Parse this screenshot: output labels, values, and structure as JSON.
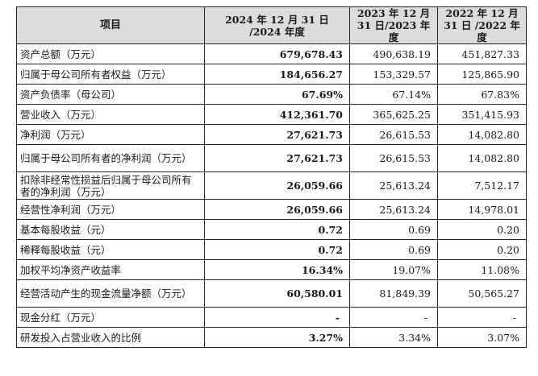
{
  "header": {
    "item": "项目",
    "y2024": "2024 年 12 月 31 日 /2024 年度",
    "y2023": "2023 年 12 月 31 日/2023 年度",
    "y2022": "2022 年 12 月 31 日 /2022 年度"
  },
  "rows": [
    {
      "label": "资产总额（万元）",
      "v2024": "679,678.43",
      "v2023": "490,638.19",
      "v2022": "451,827.33"
    },
    {
      "label": "归属于母公司所有者权益（万元）",
      "v2024": "184,656.27",
      "v2023": "153,329.57",
      "v2022": "125,865.90"
    },
    {
      "label": "资产负债率（母公司）",
      "v2024": "67.69%",
      "v2023": "67.14%",
      "v2022": "67.83%"
    },
    {
      "label": "营业收入（万元）",
      "v2024": "412,361.70",
      "v2023": "365,625.25",
      "v2022": "351,415.93"
    },
    {
      "label": "净利润（万元）",
      "v2024": "27,621.73",
      "v2023": "26,615.53",
      "v2022": "14,082.80"
    },
    {
      "label": "归属于母公司所有者的净利润（万元）",
      "v2024": "27,621.73",
      "v2023": "26,615.53",
      "v2022": "14,082.80"
    },
    {
      "label": "扣除非经常性损益后归属于母公司所有者的净利润（万元）",
      "v2024": "26,059.66",
      "v2023": "25,613.24",
      "v2022": "7,512.17"
    },
    {
      "label": "经营性净利润（万元）",
      "v2024": "26,059.66",
      "v2023": "25,613.24",
      "v2022": "14,978.01"
    },
    {
      "label": "基本每股收益（元）",
      "v2024": "0.72",
      "v2023": "0.69",
      "v2022": "0.20"
    },
    {
      "label": "稀释每股收益（元）",
      "v2024": "0.72",
      "v2023": "0.69",
      "v2022": "0.20"
    },
    {
      "label": "加权平均净资产收益率",
      "v2024": "16.34%",
      "v2023": "19.07%",
      "v2022": "11.08%"
    },
    {
      "label": "经营活动产生的现金流量净额（万元）",
      "v2024": "60,580.01",
      "v2023": "81,849.39",
      "v2022": "50,565.27"
    },
    {
      "label": "现金分红（万元）",
      "v2024": "-",
      "v2023": "-",
      "v2022": "-"
    },
    {
      "label": "研发投入占营业收入的比例",
      "v2024": "3.27%",
      "v2023": "3.34%",
      "v2022": "3.07%"
    }
  ]
}
